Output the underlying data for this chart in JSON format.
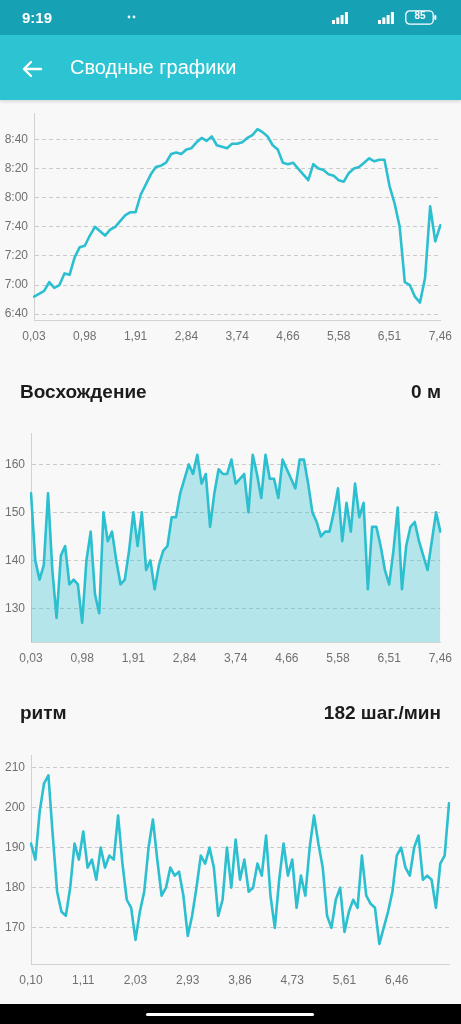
{
  "chart_data": [
    {
      "type": "line",
      "title": "Сводные графики",
      "annotations": [
        "9:19",
        "85"
      ],
      "categories": [
        "0,03",
        null,
        null,
        null,
        null,
        null,
        null,
        null,
        null,
        null,
        "0,98",
        null,
        null,
        null,
        null,
        null,
        null,
        null,
        null,
        null,
        "1,91",
        null,
        null,
        null,
        null,
        null,
        null,
        null,
        null,
        null,
        "2,84",
        null,
        null,
        null,
        null,
        null,
        null,
        null,
        null,
        null,
        "3,74",
        null,
        null,
        null,
        null,
        null,
        null,
        null,
        null,
        null,
        "4,66",
        null,
        null,
        null,
        null,
        null,
        null,
        null,
        null,
        null,
        "5,58",
        null,
        null,
        null,
        null,
        null,
        null,
        null,
        null,
        null,
        "6,51",
        null,
        null,
        null,
        null,
        null,
        null,
        null,
        null,
        null,
        "7,46"
      ],
      "series": [
        {
          "color": "#2bbfcf",
          "values": [
            412,
            414,
            416,
            422,
            418,
            420,
            428,
            427,
            439,
            446,
            447,
            454,
            460,
            457,
            454,
            458,
            460,
            464,
            468,
            470,
            470,
            482,
            489,
            496,
            501,
            502,
            504,
            510,
            511,
            510,
            513,
            514,
            518,
            521,
            519,
            522,
            516,
            515,
            514,
            517,
            517,
            518,
            521,
            523,
            527,
            525,
            522,
            516,
            513,
            504,
            503,
            504,
            500,
            496,
            492,
            503,
            500,
            499,
            496,
            495,
            492,
            491,
            497,
            500,
            501,
            504,
            507,
            505,
            506,
            506,
            488,
            476,
            460,
            422,
            420,
            412,
            408,
            425,
            474,
            450,
            461
          ]
        }
      ],
      "ylim": [
        396,
        538
      ],
      "yticks": [
        {
          "value": 400,
          "label": "6:40"
        },
        {
          "value": 420,
          "label": "7:00"
        },
        {
          "value": 440,
          "label": "7:20"
        },
        {
          "value": 460,
          "label": "7:40"
        },
        {
          "value": 480,
          "label": "8:00"
        },
        {
          "value": 500,
          "label": "8:20"
        },
        {
          "value": 520,
          "label": "8:40"
        }
      ],
      "grid": "y"
    },
    {
      "type": "area",
      "title": "Восхождение",
      "subtitle": "0 м",
      "categories": [
        "0,03",
        null,
        null,
        null,
        null,
        null,
        null,
        null,
        null,
        null,
        null,
        null,
        "0,98",
        null,
        null,
        null,
        null,
        null,
        null,
        null,
        null,
        null,
        null,
        null,
        "1,91",
        null,
        null,
        null,
        null,
        null,
        null,
        null,
        null,
        null,
        null,
        null,
        "2,84",
        null,
        null,
        null,
        null,
        null,
        null,
        null,
        null,
        null,
        null,
        null,
        "3,74",
        null,
        null,
        null,
        null,
        null,
        null,
        null,
        null,
        null,
        null,
        null,
        "4,66",
        null,
        null,
        null,
        null,
        null,
        null,
        null,
        null,
        null,
        null,
        null,
        "5,58",
        null,
        null,
        null,
        null,
        null,
        null,
        null,
        null,
        null,
        null,
        null,
        "6,51",
        null,
        null,
        null,
        null,
        null,
        null,
        null,
        null,
        null,
        null,
        null,
        "7,46"
      ],
      "series": [
        {
          "color": "#2bbfcf",
          "values": [
            154,
            140,
            136,
            139,
            154,
            138,
            128,
            141,
            143,
            135,
            136,
            135,
            127,
            140,
            146,
            133,
            129,
            150,
            144,
            146,
            140,
            135,
            136,
            142,
            150,
            143,
            150,
            138,
            140,
            134,
            139,
            142,
            143,
            149,
            149,
            154,
            157,
            160,
            158,
            162,
            156,
            158,
            147,
            154,
            159,
            158,
            158,
            161,
            156,
            157,
            158,
            150,
            162,
            158,
            153,
            162,
            157,
            157,
            153,
            161,
            159,
            157,
            155,
            161,
            161,
            156,
            150,
            148,
            145,
            146,
            146,
            150,
            155,
            144,
            152,
            146,
            156,
            149,
            152,
            134,
            147,
            147,
            143,
            138,
            135,
            142,
            151,
            134,
            143,
            147,
            148,
            144,
            141,
            138,
            144,
            150,
            146
          ]
        }
      ],
      "ylim": [
        123,
        166.5
      ],
      "yticks": [
        130,
        140,
        150,
        160
      ],
      "grid": "y"
    },
    {
      "type": "line",
      "title": "ритм",
      "subtitle": "182 шаг./мин",
      "categories": [
        "0,10",
        null,
        null,
        null,
        null,
        null,
        null,
        null,
        null,
        null,
        null,
        null,
        "1,11",
        null,
        null,
        null,
        null,
        null,
        null,
        null,
        null,
        null,
        null,
        null,
        "2,03",
        null,
        null,
        null,
        null,
        null,
        null,
        null,
        null,
        null,
        null,
        null,
        "2,93",
        null,
        null,
        null,
        null,
        null,
        null,
        null,
        null,
        null,
        null,
        null,
        "3,86",
        null,
        null,
        null,
        null,
        null,
        null,
        null,
        null,
        null,
        null,
        null,
        "4,73",
        null,
        null,
        null,
        null,
        null,
        null,
        null,
        null,
        null,
        null,
        null,
        "5,61",
        null,
        null,
        null,
        null,
        null,
        null,
        null,
        null,
        null,
        null,
        null,
        "6,46",
        null,
        null,
        null,
        null,
        null,
        null,
        null,
        null,
        null,
        null,
        null,
        null
      ],
      "series": [
        {
          "color": "#2bbfcf",
          "values": [
            191,
            187,
            199,
            206,
            208,
            193,
            179,
            174,
            173,
            180,
            191,
            187,
            194,
            185,
            187,
            182,
            190,
            185,
            188,
            187,
            198,
            186,
            177,
            175,
            167,
            174,
            179,
            190,
            197,
            187,
            178,
            180,
            185,
            183,
            184,
            178,
            168,
            173,
            180,
            188,
            186,
            190,
            185,
            173,
            177,
            190,
            180,
            192,
            182,
            187,
            179,
            180,
            186,
            183,
            193,
            178,
            170,
            182,
            191,
            183,
            187,
            175,
            183,
            178,
            190,
            198,
            191,
            185,
            173,
            170,
            177,
            180,
            169,
            174,
            177,
            175,
            188,
            178,
            176,
            175,
            166,
            170,
            174,
            179,
            188,
            190,
            185,
            183,
            190,
            193,
            182,
            183,
            182,
            175,
            186,
            188,
            201
          ]
        }
      ],
      "ylim": [
        161,
        213
      ],
      "yticks": [
        170,
        180,
        190,
        200,
        210
      ],
      "grid": "y"
    }
  ]
}
